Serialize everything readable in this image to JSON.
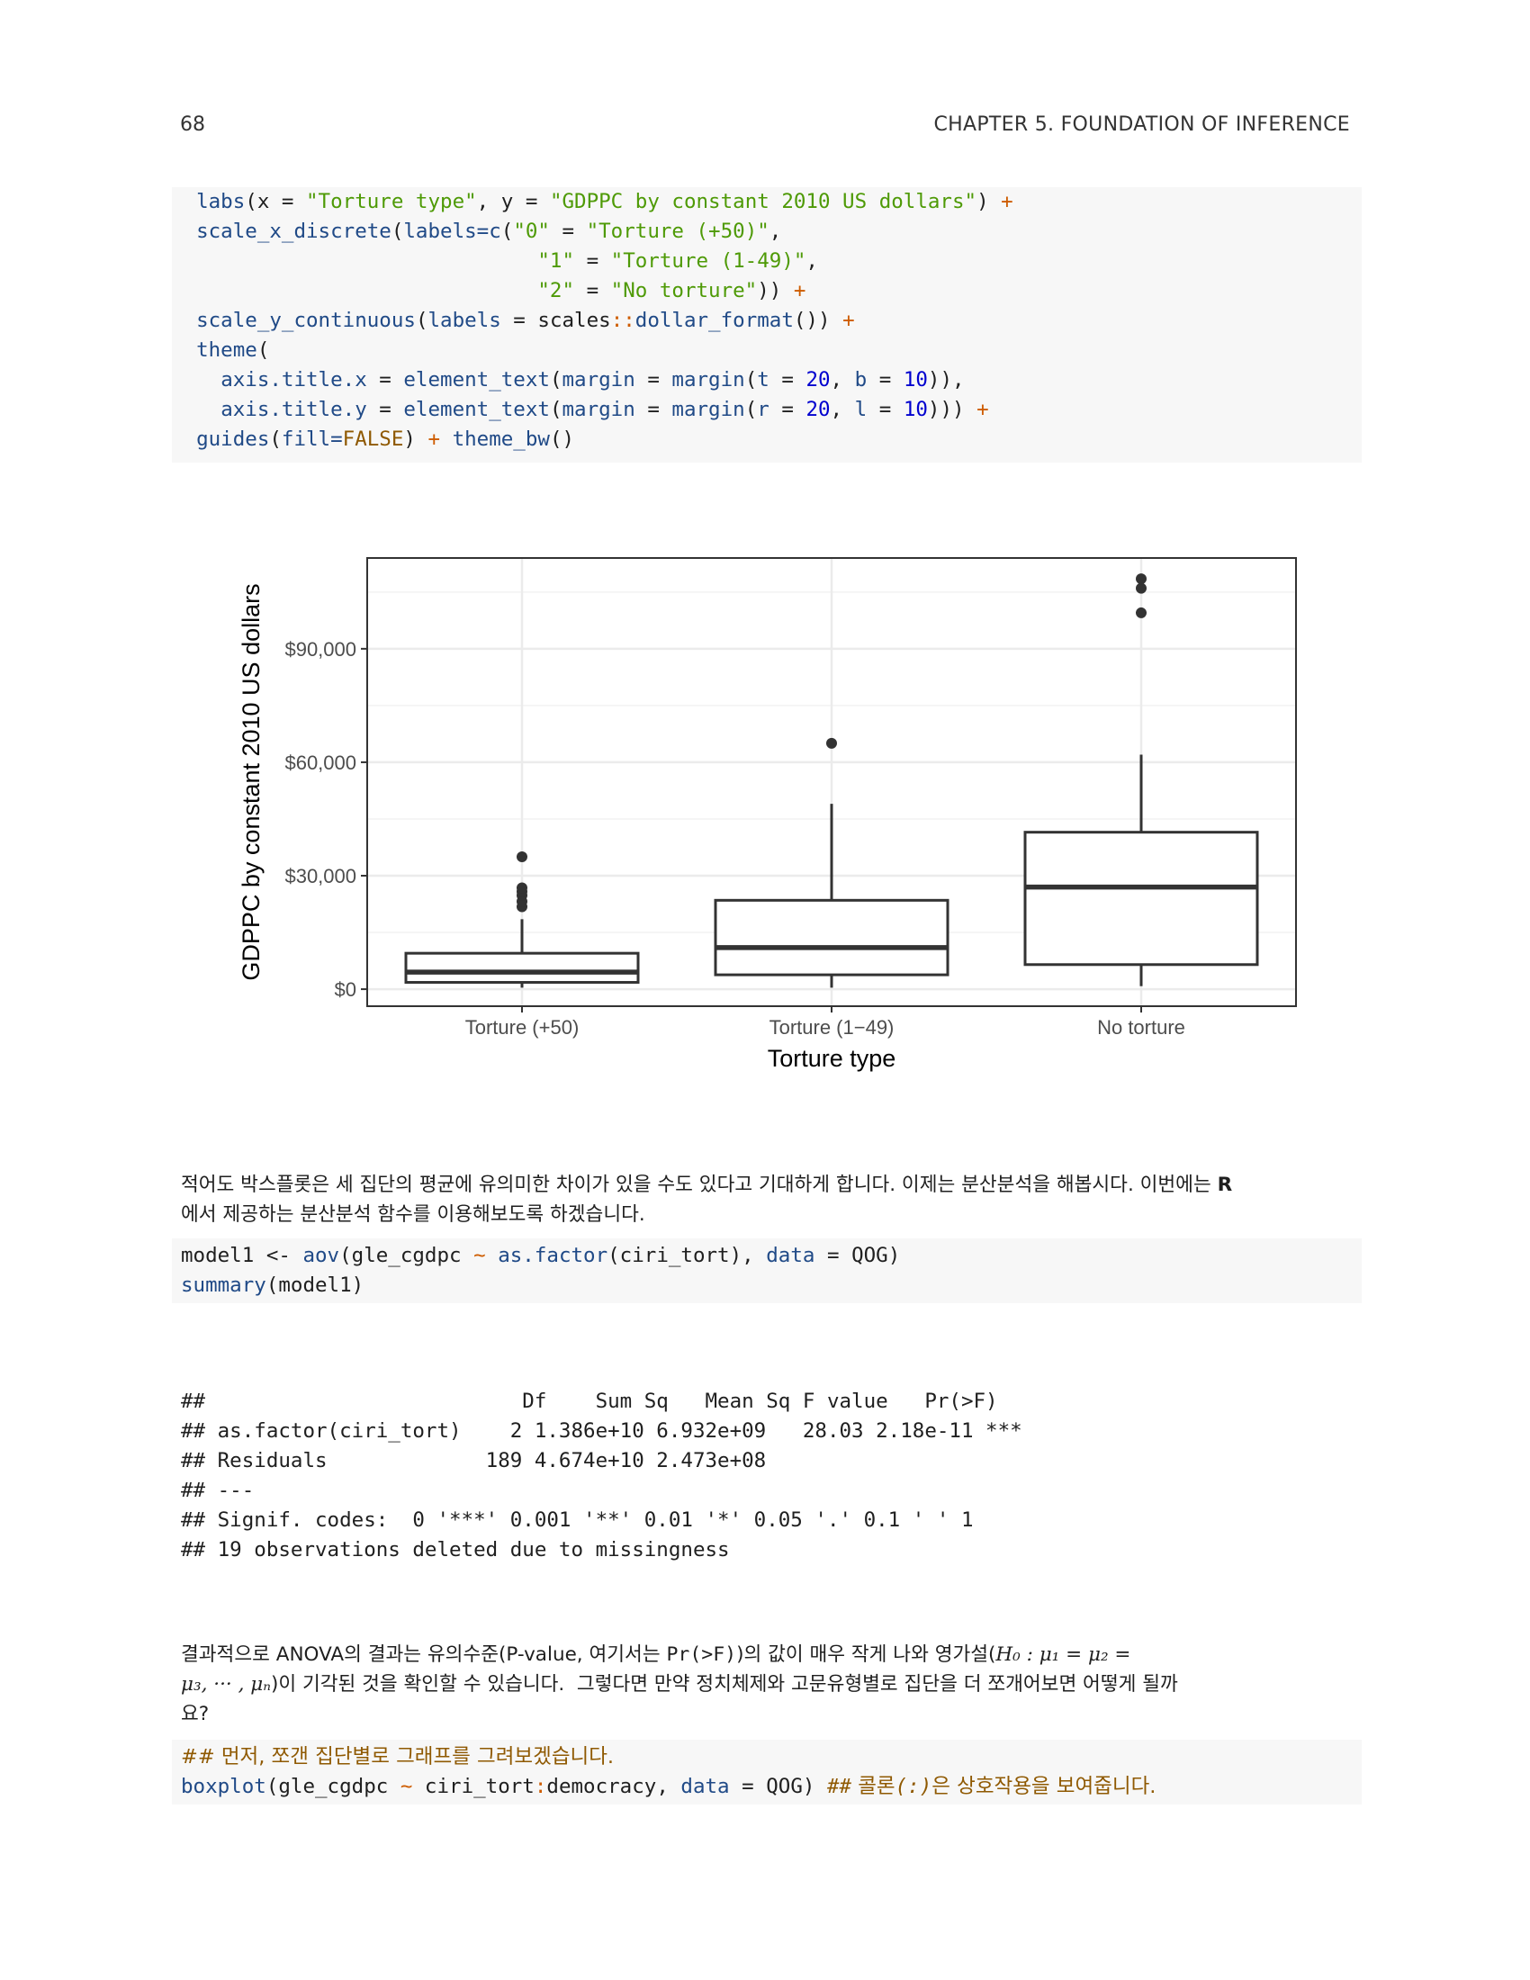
{
  "header": {
    "page_number": "68",
    "chapter_title": "CHAPTER 5.  FOUNDATION OF INFERENCE"
  },
  "code_block_1": {
    "lines": [
      [
        "  ",
        "labs",
        "(x = ",
        "\"Torture type\"",
        ", y = ",
        "\"GDPPC by constant 2010 US dollars\"",
        ") ",
        "+"
      ],
      [
        "  ",
        "scale_x_discrete",
        "(",
        "labels=c",
        "(",
        "\"0\"",
        " = ",
        "\"Torture (+50)\"",
        ","
      ],
      [
        "                              ",
        "\"1\"",
        " = ",
        "\"Torture (1-49)\"",
        ","
      ],
      [
        "                              ",
        "\"2\"",
        " = ",
        "\"No torture\"",
        ")) ",
        "+"
      ],
      [
        "  ",
        "scale_y_continuous",
        "(",
        "labels",
        " = scales",
        "::",
        "dollar_format",
        "()) ",
        "+"
      ],
      [
        "  ",
        "theme",
        "("
      ],
      [
        "    ",
        "axis.title.x",
        " = ",
        "element_text",
        "(",
        "margin",
        " = ",
        "margin",
        "(",
        "t",
        " = ",
        "20",
        ", ",
        "b",
        " = ",
        "10",
        ")),"
      ],
      [
        "    ",
        "axis.title.y",
        " = ",
        "element_text",
        "(",
        "margin",
        " = ",
        "margin",
        "(",
        "r",
        " = ",
        "20",
        ", ",
        "l",
        " = ",
        "10",
        "))) ",
        "+"
      ],
      [
        "  ",
        "guides",
        "(",
        "fill=",
        "FALSE",
        ") ",
        "+",
        " ",
        "theme_bw",
        "()"
      ]
    ]
  },
  "chart_data": {
    "type": "box",
    "xlabel": "Torture type",
    "ylabel": "GDPPC by constant 2010 US dollars",
    "categories": [
      "Torture (+50)",
      "Torture (1−49)",
      "No torture"
    ],
    "y_ticks": [
      0,
      30000,
      60000,
      90000
    ],
    "y_tick_labels": [
      "$0",
      "$30,000",
      "$60,000",
      "$90,000"
    ],
    "ylim": [
      -4500,
      114000
    ],
    "boxes": [
      {
        "category": "Torture (+50)",
        "whisker_low": 400,
        "q1": 1800,
        "median": 4500,
        "q3": 9500,
        "whisker_high": 18500,
        "outliers": [
          21800,
          23200,
          24800,
          25800,
          26800,
          35000
        ]
      },
      {
        "category": "Torture (1−49)",
        "whisker_low": 400,
        "q1": 3800,
        "median": 11000,
        "q3": 23500,
        "whisker_high": 49000,
        "outliers": [
          65000
        ]
      },
      {
        "category": "No torture",
        "whisker_low": 800,
        "q1": 6500,
        "median": 27000,
        "q3": 41500,
        "whisker_high": 62000,
        "outliers": [
          99500,
          106000,
          108500
        ]
      }
    ],
    "grid": true,
    "theme": "bw",
    "colors": {
      "box_stroke": "#333333",
      "box_fill": "#ffffff",
      "grid": "#ebebeb",
      "panel_border": "#333333",
      "outlier": "#333333"
    }
  },
  "para_1": {
    "line1": "적어도 박스플롯은 세 집단의 평균에 유의미한 차이가 있을 수도 있다고 기대하게 합니다. 이제는 분산분석을 해봅시다. 이번에는 ",
    "line1_bold": "R",
    "line2": "에서 제공하는 분산분석 함수를 이용해보도록 하겠습니다."
  },
  "code_block_2": {
    "l1": [
      "model1 <- ",
      "aov",
      "(gle_cgdpc ",
      "~",
      " ",
      "as.factor",
      "(ciri_tort), ",
      "data",
      " = QOG)"
    ],
    "l2": [
      "summary",
      "(model1)"
    ]
  },
  "output": {
    "lines": [
      "##                          Df    Sum Sq   Mean Sq F value   Pr(>F)    ",
      "## as.factor(ciri_tort)    2 1.386e+10 6.932e+09   28.03 2.18e-11 ***",
      "## Residuals             189 4.674e+10 2.473e+08                     ",
      "## ---",
      "## Signif. codes:  0 '***' 0.001 '**' 0.01 '*' 0.05 '.' 0.1 ' ' 1",
      "## 19 observations deleted due to missingness"
    ]
  },
  "para_2": {
    "l1_a": "결과적으로 ANOVA의 결과는 유의수준(P-value, 여기서는 ",
    "l1_code": "Pr(>F)",
    "l1_b": ")의 값이 매우 작게 나와 영가설(",
    "l1_math": "H₀ : μ₁ = μ₂ =",
    "l2_math": "μ₃, ··· , μₙ",
    "l2_b": ")이 기각된 것을 확인할 수 있습니다.  그렇다면 만약 정치체제와 고문유형별로 집단을 더 쪼개어보면 어떻게 될까",
    "l3": "요?"
  },
  "code_block_3": {
    "l1": "## 먼저, 쪼갠 집단별로 그래프를 그려보겠습니다.",
    "l2": [
      "boxplot",
      "(gle_cgdpc ",
      "~",
      " ciri_tort",
      ":",
      "democracy, ",
      "data",
      " = QOG) ",
      "##",
      " 콜론",
      "(:)",
      "은 상호작용을 보여줍니다."
    ]
  }
}
